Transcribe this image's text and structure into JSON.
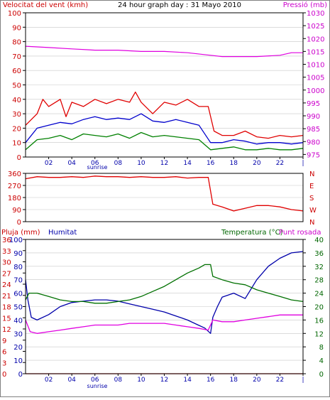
{
  "header": {
    "left_label": "Velocitat del vent (kmh)",
    "center_label": "24 hour graph day : 31 Mayo 2010",
    "right_label": "Pressió (mb)"
  },
  "colors": {
    "wind_gust": "#e00000",
    "wind_avg": "#0000cc",
    "wind_low": "#008000",
    "pressure": "#e000e0",
    "direction": "#e00000",
    "humidity": "#0000aa",
    "temperature": "#007000",
    "dewpoint": "#e000e0",
    "rain": "#e00000",
    "axis_left": "#cc0000",
    "axis_right": "#cc00cc",
    "axis_green": "#006600",
    "grid": "#c8c8c8"
  },
  "chart_data": [
    {
      "id": "wind_pressure",
      "type": "line",
      "title": "24 hour graph day : 31 Mayo 2010",
      "ylabel_left": "Velocitat del vent (kmh)",
      "ylabel_right": "Pressió (mb)",
      "xlim": [
        0,
        24
      ],
      "x_ticks": [
        "02",
        "04",
        "06",
        "08",
        "10",
        "12",
        "14",
        "16",
        "18",
        "20",
        "22",
        "|"
      ],
      "x_annotation": "sunrise",
      "ylim_left": [
        0,
        100
      ],
      "y_ticks_left": [
        "0",
        "10",
        "20",
        "30",
        "40",
        "50",
        "60",
        "70",
        "80",
        "90",
        "100"
      ],
      "ylim_right": [
        974,
        1030
      ],
      "y_ticks_right": [
        "975",
        "980",
        "985",
        "990",
        "995",
        "1000",
        "1005",
        "1010",
        "1015",
        "1020",
        "1025",
        "1030"
      ],
      "grid": true,
      "series": [
        {
          "name": "Velocitat del vent (kmh)",
          "axis": "left",
          "x": [
            0,
            1,
            1.5,
            2,
            3,
            3.5,
            4,
            5,
            6,
            7,
            8,
            9,
            9.5,
            10,
            11,
            12,
            13,
            14,
            15,
            15.8,
            16.3,
            17,
            18,
            19,
            20,
            21,
            22,
            23,
            24
          ],
          "y": [
            22,
            30,
            40,
            35,
            40,
            28,
            38,
            35,
            40,
            37,
            40,
            38,
            45,
            38,
            30,
            38,
            36,
            40,
            35,
            35,
            18,
            15,
            15,
            18,
            14,
            13,
            15,
            14,
            15
          ]
        },
        {
          "name": "wind average",
          "axis": "left",
          "x": [
            0,
            1,
            2,
            3,
            4,
            5,
            6,
            7,
            8,
            9,
            10,
            11,
            12,
            13,
            14,
            15,
            16,
            17,
            18,
            19,
            20,
            21,
            22,
            23,
            24
          ],
          "y": [
            10,
            20,
            22,
            24,
            23,
            26,
            28,
            26,
            27,
            26,
            30,
            25,
            24,
            26,
            24,
            22,
            10,
            10,
            12,
            11,
            9,
            10,
            10,
            9,
            10
          ]
        },
        {
          "name": "wind low",
          "axis": "left",
          "x": [
            0,
            1,
            2,
            3,
            4,
            5,
            6,
            7,
            8,
            9,
            10,
            11,
            12,
            13,
            14,
            15,
            16,
            17,
            18,
            19,
            20,
            21,
            22,
            23,
            24
          ],
          "y": [
            5,
            12,
            13,
            15,
            12,
            16,
            15,
            14,
            16,
            13,
            17,
            14,
            15,
            14,
            13,
            12,
            5,
            6,
            7,
            5,
            5,
            6,
            5,
            5,
            6
          ]
        },
        {
          "name": "Pressió (mb)",
          "axis": "right",
          "x": [
            0,
            2,
            4,
            6,
            8,
            10,
            12,
            14,
            16,
            17,
            18,
            20,
            22,
            23,
            24
          ],
          "y": [
            1017,
            1016.5,
            1016,
            1015.5,
            1015.5,
            1015,
            1015,
            1014.5,
            1013.5,
            1013,
            1013,
            1013,
            1013.5,
            1014.5,
            1014.5
          ]
        }
      ]
    },
    {
      "id": "wind_direction",
      "type": "line",
      "xlim": [
        0,
        24
      ],
      "ylim": [
        0,
        360
      ],
      "y_ticks": [
        "0",
        "90",
        "180",
        "270",
        "360"
      ],
      "y_ticks_right": [
        "N",
        "W",
        "S",
        "E",
        "N"
      ],
      "grid": true,
      "series": [
        {
          "name": "wind direction",
          "x": [
            0,
            1,
            2,
            3,
            4,
            5,
            6,
            7,
            8,
            9,
            10,
            11,
            12,
            13,
            14,
            15,
            15.8,
            16.2,
            17,
            18,
            19,
            20,
            21,
            22,
            23,
            24
          ],
          "y": [
            320,
            335,
            330,
            330,
            335,
            330,
            340,
            335,
            335,
            330,
            335,
            330,
            330,
            335,
            325,
            330,
            330,
            130,
            110,
            80,
            100,
            120,
            120,
            110,
            90,
            80
          ]
        }
      ]
    },
    {
      "id": "rain_humidity_temp",
      "type": "line",
      "xlim": [
        0,
        24
      ],
      "x_ticks": [
        "02",
        "04",
        "06",
        "08",
        "10",
        "12",
        "14",
        "16",
        "18",
        "20",
        "22",
        "|"
      ],
      "x_annotation": "sunrise",
      "labels": {
        "rain": "Pluja (mm)",
        "humidity": "Humitat",
        "temperature": "Temperatura (°C)",
        "dewpoint": "Punt rosada"
      },
      "ylim_rain": [
        0,
        36
      ],
      "y_ticks_rain": [
        "0",
        "3",
        "6",
        "9",
        "12",
        "15",
        "18",
        "21",
        "24",
        "27",
        "30",
        "33",
        "36"
      ],
      "ylim_humidity": [
        0,
        100
      ],
      "y_ticks_humidity": [
        "0",
        "10",
        "20",
        "30",
        "40",
        "50",
        "60",
        "70",
        "80",
        "90",
        "100"
      ],
      "ylim_temp": [
        0,
        40
      ],
      "y_ticks_temp": [
        "0",
        "4",
        "8",
        "12",
        "16",
        "20",
        "24",
        "28",
        "32",
        "36",
        "40"
      ],
      "grid": true,
      "series": [
        {
          "name": "Pluja (mm)",
          "axis": "rain",
          "x": [
            0,
            24
          ],
          "y": [
            0,
            0
          ]
        },
        {
          "name": "Humitat",
          "axis": "humidity",
          "x": [
            0,
            0.2,
            0.5,
            1,
            2,
            3,
            4,
            5,
            6,
            7,
            8,
            9,
            10,
            11,
            12,
            13,
            14,
            15,
            15.5,
            16,
            16.2,
            16.6,
            17,
            18,
            19,
            20,
            21,
            22,
            23,
            24
          ],
          "y": [
            70,
            55,
            42,
            40,
            44,
            50,
            53,
            54,
            55,
            55,
            54,
            52,
            50,
            48,
            46,
            43,
            40,
            36,
            34,
            30,
            42,
            50,
            57,
            60,
            56,
            70,
            80,
            86,
            90,
            91
          ]
        },
        {
          "name": "Temperatura (°C)",
          "axis": "temp",
          "x": [
            0,
            0.3,
            1,
            2,
            3,
            4,
            5,
            6,
            7,
            8,
            9,
            10,
            11,
            12,
            13,
            14,
            15,
            15.5,
            16,
            16.2,
            17,
            18,
            19,
            20,
            21,
            22,
            23,
            24
          ],
          "y": [
            22,
            24,
            24,
            23,
            22,
            21.5,
            21.5,
            21,
            21,
            21.5,
            22,
            23,
            24.5,
            26,
            28,
            30,
            31.5,
            32.5,
            32.5,
            29,
            28,
            27,
            26.5,
            25,
            24,
            23,
            22,
            21.5
          ]
        },
        {
          "name": "Punt rosada",
          "axis": "temp",
          "x": [
            0,
            0.4,
            1,
            2,
            3,
            4,
            5,
            6,
            7,
            8,
            9,
            10,
            11,
            12,
            13,
            14,
            15,
            15.8,
            16.2,
            17,
            18,
            19,
            20,
            21,
            22,
            23,
            24
          ],
          "y": [
            16,
            12.5,
            12,
            12.5,
            13,
            13.5,
            14,
            14.5,
            14.5,
            14.5,
            15,
            15,
            15,
            15,
            14.5,
            14,
            13.5,
            13,
            16,
            15.5,
            15.5,
            16,
            16.5,
            17,
            17.5,
            17.5,
            17.5
          ]
        }
      ]
    }
  ]
}
